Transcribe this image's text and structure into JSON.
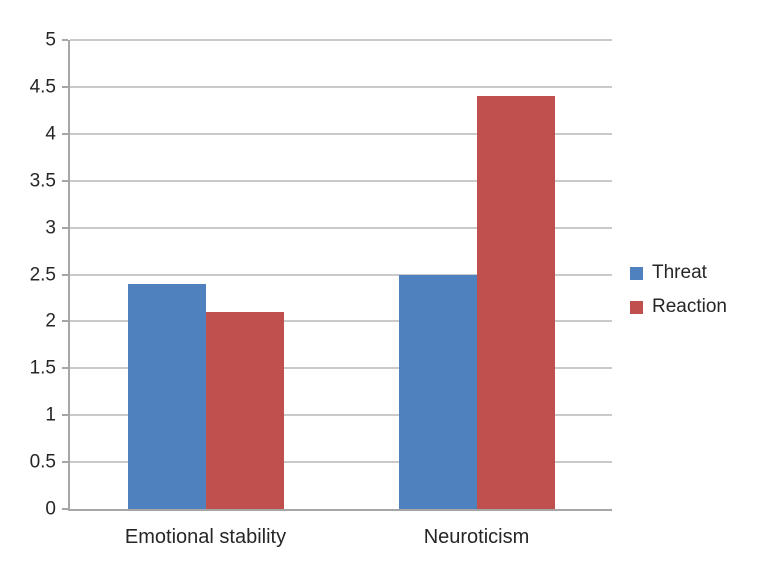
{
  "chart_data": {
    "type": "bar",
    "title": "",
    "xlabel": "",
    "ylabel": "",
    "categories": [
      "Emotional stability",
      "Neuroticism"
    ],
    "series": [
      {
        "name": "Threat",
        "color": "#4E81BD",
        "values": [
          2.4,
          2.5
        ]
      },
      {
        "name": "Reaction",
        "color": "#C0504D",
        "values": [
          2.1,
          4.4
        ]
      }
    ],
    "ylim": [
      0,
      5
    ],
    "ytick_step": 0.5,
    "ytick_labels": [
      "0",
      "0.5",
      "1",
      "1.5",
      "2",
      "2.5",
      "3",
      "3.5",
      "4",
      "4.5",
      "5"
    ],
    "grid": true,
    "legend_position": "right"
  },
  "colors": {
    "background": "#FFFFFF",
    "gridline": "#C9C9C9",
    "axis": "#A6A6A6",
    "text": "#262626"
  }
}
